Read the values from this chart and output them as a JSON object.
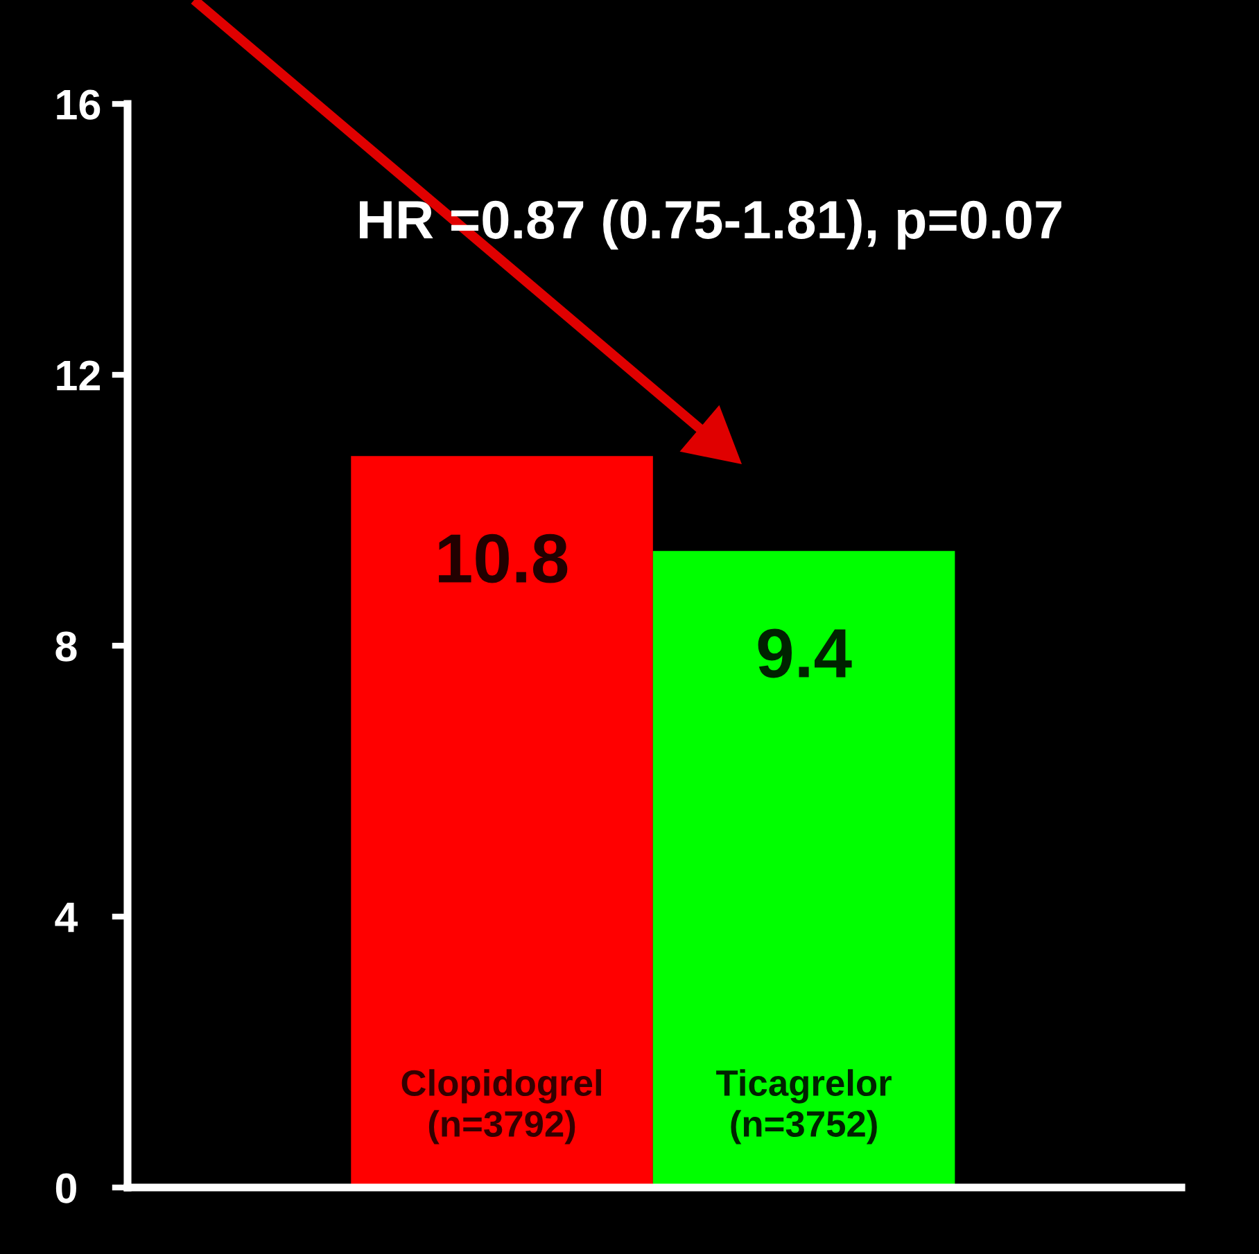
{
  "chart_data": {
    "type": "bar",
    "categories": [
      "Clopidogrel\n(n=3792)",
      "Ticagrelor\n(n=3752)"
    ],
    "values": [
      10.8,
      9.4
    ],
    "colors": [
      "#ff0000",
      "#00ff00"
    ],
    "ylim": [
      0,
      16
    ],
    "yticks": [
      0,
      4,
      8,
      12,
      16
    ],
    "data_labels": true,
    "grid": false,
    "annotations": [
      {
        "text": "HR =0.87 (0.75-1.81), p=0.07"
      }
    ]
  }
}
